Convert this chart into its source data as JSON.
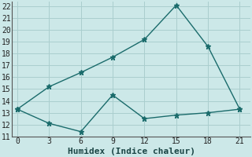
{
  "xlabel": "Humidex (Indice chaleur)",
  "background_color": "#cce8e8",
  "grid_color": "#aacece",
  "line_color": "#1a6b6b",
  "line1_x": [
    0,
    3,
    6,
    9,
    12,
    15,
    18,
    21
  ],
  "line1_y": [
    13.3,
    15.2,
    16.4,
    17.7,
    19.2,
    22.1,
    18.6,
    13.3
  ],
  "line2_x": [
    0,
    3,
    6,
    9,
    12,
    15,
    18,
    21
  ],
  "line2_y": [
    13.3,
    12.1,
    11.4,
    14.5,
    12.5,
    12.8,
    13.0,
    13.3
  ],
  "xlim": [
    -0.5,
    22
  ],
  "ylim": [
    11,
    22.4
  ],
  "xticks": [
    0,
    3,
    6,
    9,
    12,
    15,
    18,
    21
  ],
  "yticks": [
    11,
    12,
    13,
    14,
    15,
    16,
    17,
    18,
    19,
    20,
    21,
    22
  ],
  "marker": "*",
  "marker_size": 5,
  "line_width": 1.0,
  "xlabel_fontsize": 8,
  "tick_fontsize": 7
}
